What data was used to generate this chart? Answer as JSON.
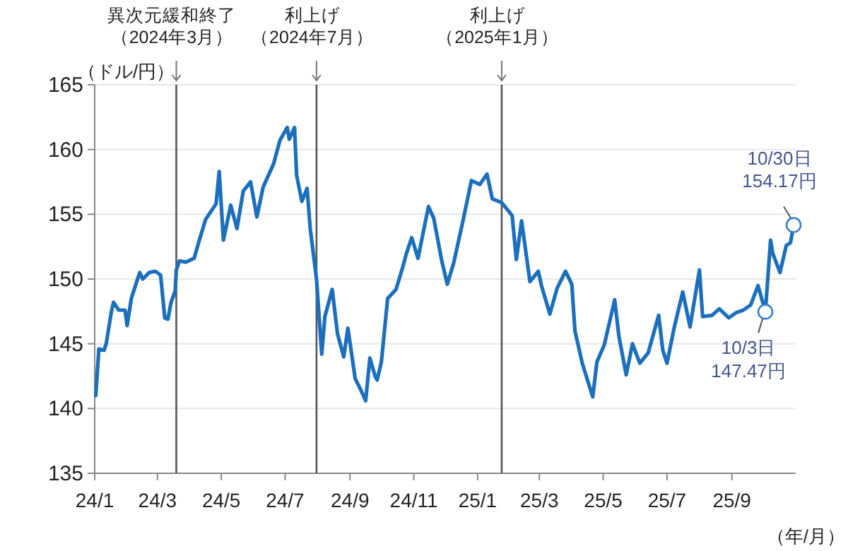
{
  "chart_data": {
    "type": "line",
    "ylabel": "（ドル/円）",
    "xlabel": "（年/月）",
    "x": [
      "2024-01-02",
      "2024-01-05",
      "2024-01-10",
      "2024-01-12",
      "2024-01-17",
      "2024-01-19",
      "2024-01-24",
      "2024-01-30",
      "2024-02-01",
      "2024-02-05",
      "2024-02-13",
      "2024-02-16",
      "2024-02-22",
      "2024-02-28",
      "2024-03-04",
      "2024-03-08",
      "2024-03-11",
      "2024-03-14",
      "2024-03-18",
      "2024-03-19",
      "2024-03-22",
      "2024-03-28",
      "2024-04-05",
      "2024-04-10",
      "2024-04-16",
      "2024-04-26",
      "2024-04-29",
      "2024-05-03",
      "2024-05-10",
      "2024-05-16",
      "2024-05-22",
      "2024-05-29",
      "2024-06-04",
      "2024-06-10",
      "2024-06-20",
      "2024-06-26",
      "2024-07-03",
      "2024-07-05",
      "2024-07-10",
      "2024-07-12",
      "2024-07-17",
      "2024-07-22",
      "2024-07-25",
      "2024-07-31",
      "2024-08-05",
      "2024-08-08",
      "2024-08-15",
      "2024-08-20",
      "2024-08-26",
      "2024-08-30",
      "2024-09-06",
      "2024-09-11",
      "2024-09-16",
      "2024-09-20",
      "2024-09-25",
      "2024-09-27",
      "2024-10-01",
      "2024-10-07",
      "2024-10-15",
      "2024-10-21",
      "2024-10-25",
      "2024-10-30",
      "2024-11-05",
      "2024-11-15",
      "2024-11-20",
      "2024-11-28",
      "2024-12-03",
      "2024-12-09",
      "2024-12-18",
      "2024-12-26",
      "2025-01-03",
      "2025-01-10",
      "2025-01-15",
      "2025-01-24",
      "2025-02-03",
      "2025-02-07",
      "2025-02-12",
      "2025-02-20",
      "2025-02-28",
      "2025-03-03",
      "2025-03-11",
      "2025-03-18",
      "2025-03-26",
      "2025-04-01",
      "2025-04-04",
      "2025-04-11",
      "2025-04-21",
      "2025-04-25",
      "2025-05-02",
      "2025-05-12",
      "2025-05-16",
      "2025-05-23",
      "2025-05-29",
      "2025-06-05",
      "2025-06-13",
      "2025-06-23",
      "2025-06-27",
      "2025-07-01",
      "2025-07-08",
      "2025-07-16",
      "2025-07-23",
      "2025-08-01",
      "2025-08-04",
      "2025-08-13",
      "2025-08-20",
      "2025-08-29",
      "2025-09-05",
      "2025-09-12",
      "2025-09-19",
      "2025-09-26",
      "2025-10-03",
      "2025-10-08",
      "2025-10-10",
      "2025-10-17",
      "2025-10-23",
      "2025-10-27",
      "2025-10-30"
    ],
    "series": [
      {
        "color": "#1c6fbd",
        "values": [
          141.0,
          144.6,
          144.5,
          145.0,
          147.5,
          148.2,
          147.6,
          147.6,
          146.4,
          148.5,
          150.5,
          150.0,
          150.5,
          150.6,
          150.3,
          147.0,
          146.9,
          148.2,
          149.1,
          150.7,
          151.4,
          151.3,
          151.6,
          153.0,
          154.6,
          155.8,
          158.3,
          153.0,
          155.7,
          153.9,
          156.8,
          157.5,
          154.8,
          157.1,
          158.9,
          160.7,
          161.7,
          160.8,
          161.7,
          158.0,
          156.0,
          157.0,
          153.9,
          150.0,
          144.2,
          147.1,
          149.2,
          145.8,
          144.0,
          146.2,
          142.3,
          141.5,
          140.6,
          143.9,
          142.5,
          142.2,
          143.6,
          148.5,
          149.2,
          150.8,
          152.0,
          153.2,
          151.6,
          155.6,
          154.7,
          151.3,
          149.6,
          151.2,
          154.5,
          157.6,
          157.3,
          158.1,
          156.2,
          155.9,
          154.9,
          151.5,
          154.5,
          149.8,
          150.6,
          149.5,
          147.3,
          149.3,
          150.6,
          149.6,
          146.0,
          143.5,
          140.9,
          143.6,
          144.9,
          148.4,
          145.6,
          142.6,
          145.0,
          143.5,
          144.3,
          147.2,
          144.5,
          143.5,
          146.3,
          149.0,
          146.3,
          150.7,
          147.1,
          147.2,
          147.7,
          147.0,
          147.4,
          147.6,
          148.0,
          149.5,
          147.47,
          153.0,
          152.0,
          150.5,
          152.6,
          152.8,
          154.17
        ]
      }
    ],
    "xlim": [
      "2024-01-01",
      "2025-11-01"
    ],
    "ylim": [
      135,
      165
    ],
    "yticks": [
      135,
      140,
      145,
      150,
      155,
      160,
      165
    ],
    "xticks": [
      {
        "value": "2024-01-01",
        "label": "24/1"
      },
      {
        "value": "2024-03-01",
        "label": "24/3"
      },
      {
        "value": "2024-05-01",
        "label": "24/5"
      },
      {
        "value": "2024-07-01",
        "label": "24/7"
      },
      {
        "value": "2024-09-01",
        "label": "24/9"
      },
      {
        "value": "2024-11-01",
        "label": "24/11"
      },
      {
        "value": "2025-01-01",
        "label": "25/1"
      },
      {
        "value": "2025-03-01",
        "label": "25/3"
      },
      {
        "value": "2025-05-01",
        "label": "25/5"
      },
      {
        "value": "2025-07-01",
        "label": "25/7"
      },
      {
        "value": "2025-09-01",
        "label": "25/9"
      }
    ],
    "grid": "y",
    "marker": "none",
    "line_style": "solid",
    "ref_lines": [
      {
        "axis": "x",
        "value": "2024-03-19",
        "label": "異次元緩和終了（2024年3月）",
        "color": "#555555"
      },
      {
        "axis": "x",
        "value": "2024-07-31",
        "label": "利上げ（2024年7月）",
        "color": "#555555"
      },
      {
        "axis": "x",
        "value": "2025-01-24",
        "label": "利上げ（2025年1月）",
        "color": "#555555"
      }
    ],
    "annotations": [
      {
        "text": "10/3日\n147.47円",
        "x": "2025-10-03",
        "y": 147.47
      },
      {
        "text": "10/30日\n154.17円",
        "x": "2025-10-30",
        "y": 154.17
      }
    ]
  }
}
